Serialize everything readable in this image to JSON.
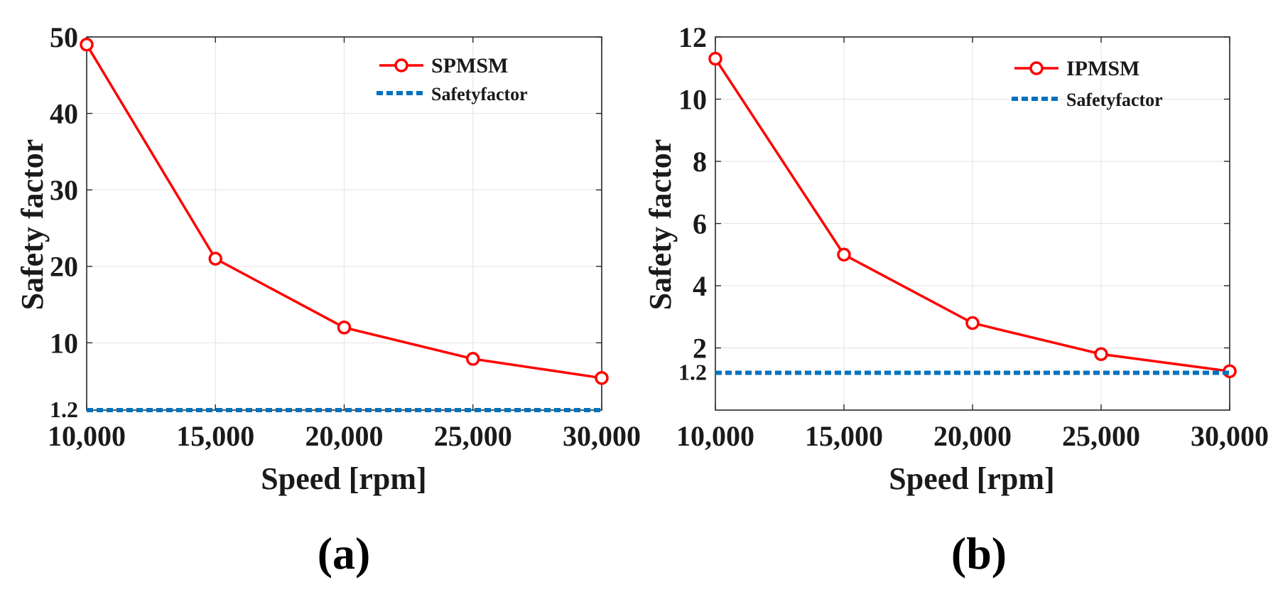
{
  "colors": {
    "series_line": "#ff0000",
    "safety_line": "#0072bd",
    "grid": "#e3e3e3",
    "axes": "#262626",
    "background": "#ffffff"
  },
  "chart_data": [
    {
      "type": "line",
      "panel_label": "(a)",
      "x": [
        10000,
        15000,
        20000,
        25000,
        30000
      ],
      "x_tick_labels": [
        "10,000",
        "15,000",
        "20,000",
        "25,000",
        "30,000"
      ],
      "xlim": [
        10000,
        30000
      ],
      "ylim": [
        1.2,
        50
      ],
      "y_ticks": [
        1.2,
        10,
        20,
        30,
        40,
        50
      ],
      "y_tick_labels": [
        "1.2",
        "10",
        "20",
        "30",
        "40",
        "50"
      ],
      "xlabel": "Speed [rpm]",
      "ylabel": "Safety factor",
      "grid": true,
      "legend_position": "top-right",
      "series": [
        {
          "name": "SPMSM",
          "values": [
            49,
            21,
            12,
            7.9,
            5.4
          ],
          "style": "solid-circle-markers",
          "color": "#ff0000"
        },
        {
          "name": "Safetyfactor",
          "values": [
            1.2,
            1.2,
            1.2,
            1.2,
            1.2
          ],
          "style": "dotted",
          "color": "#0072bd"
        }
      ]
    },
    {
      "type": "line",
      "panel_label": "(b)",
      "x": [
        10000,
        15000,
        20000,
        25000,
        30000
      ],
      "x_tick_labels": [
        "10,000",
        "15,000",
        "20,000",
        "25,000",
        "30,000"
      ],
      "xlim": [
        10000,
        30000
      ],
      "ylim": [
        0,
        12
      ],
      "y_ticks": [
        1.2,
        2,
        4,
        6,
        8,
        10,
        12
      ],
      "y_tick_labels": [
        "1.2",
        "2",
        "4",
        "6",
        "8",
        "10",
        "12"
      ],
      "xlabel": "Speed [rpm]",
      "ylabel": "Safety factor",
      "grid": true,
      "legend_position": "top-right",
      "series": [
        {
          "name": "IPMSM",
          "values": [
            11.3,
            5.0,
            2.8,
            1.8,
            1.25
          ],
          "style": "solid-circle-markers",
          "color": "#ff0000"
        },
        {
          "name": "Safetyfactor",
          "values": [
            1.2,
            1.2,
            1.2,
            1.2,
            1.2
          ],
          "style": "dotted",
          "color": "#0072bd"
        }
      ]
    }
  ]
}
